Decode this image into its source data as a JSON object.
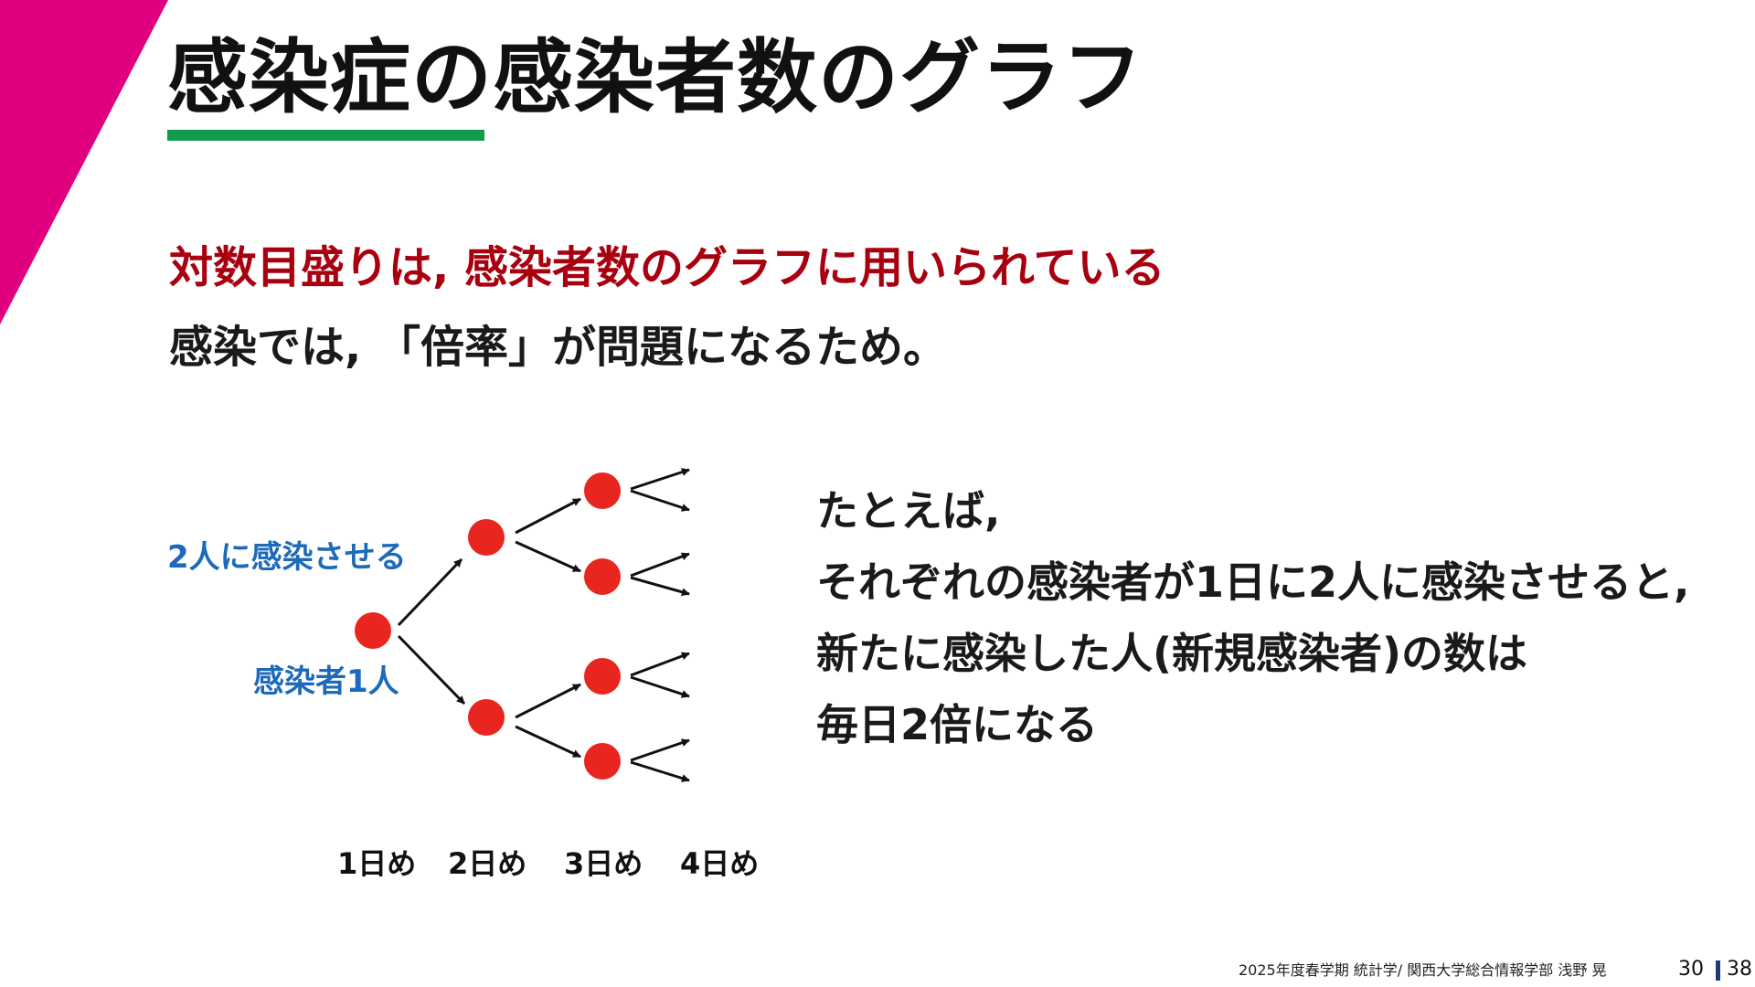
{
  "title": "感染症の感染者数のグラフ",
  "subtitle": "対数目盛りは, 感染者数のグラフに用いられている",
  "reason": "感染では, 「倍率」が問題になるため。",
  "diagram": {
    "spread_label": "2人に感染させる",
    "first_label": "感染者1人",
    "days": [
      "1日め",
      "2日め",
      "3日め",
      "4日め"
    ]
  },
  "explanation": {
    "lines": [
      "たとえば,",
      "それぞれの感染者が1日に2人に感染させると,",
      "新たに感染した人(新規感染者)の数は",
      "毎日2倍になる"
    ]
  },
  "footer": {
    "text": "2025年度春学期 統計学/ 関西大学総合情報学部 浅野 晃",
    "page": "30",
    "total": "38"
  },
  "colors": {
    "accent_magenta": "#e0007f",
    "underline_green": "#109a4d",
    "subtitle_red": "#a8000f",
    "label_blue": "#1c6ab9",
    "node_red": "#e8251e"
  }
}
